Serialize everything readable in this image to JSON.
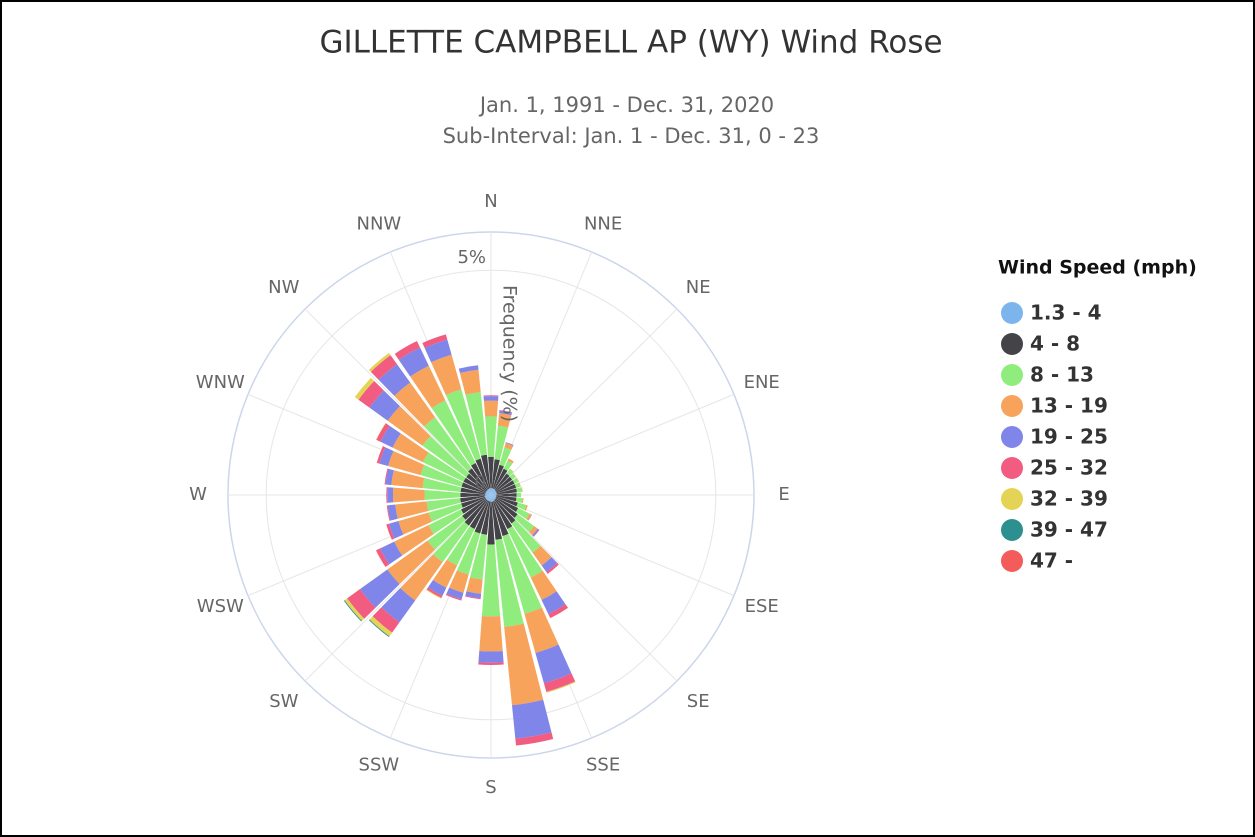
{
  "chart_data": {
    "type": "windrose",
    "title": "GILLETTE CAMPBELL AP (WY) Wind Rose",
    "subtitle": [
      "Jan. 1, 1991 - Dec. 31, 2020",
      "Sub-Interval: Jan. 1 - Dec. 31, 0 - 23"
    ],
    "y_axis_title": "Frequency (%)",
    "legend_title": "Wind Speed (mph)",
    "x": [
      0,
      10,
      20,
      30,
      40,
      50,
      60,
      70,
      80,
      90,
      100,
      110,
      120,
      130,
      140,
      150,
      160,
      170,
      180,
      190,
      200,
      210,
      220,
      230,
      240,
      250,
      260,
      270,
      280,
      290,
      300,
      310,
      320,
      330,
      340,
      350
    ],
    "xlim": [
      0,
      360
    ],
    "xticks": [
      {
        "value": 0,
        "label": "N"
      },
      {
        "value": 22.5,
        "label": "NNE"
      },
      {
        "value": 45,
        "label": "NE"
      },
      {
        "value": 67.5,
        "label": "ENE"
      },
      {
        "value": 90,
        "label": "E"
      },
      {
        "value": 112.5,
        "label": "ESE"
      },
      {
        "value": 135,
        "label": "SE"
      },
      {
        "value": 157.5,
        "label": "SSE"
      },
      {
        "value": 180,
        "label": "S"
      },
      {
        "value": 202.5,
        "label": "SSW"
      },
      {
        "value": 225,
        "label": "SW"
      },
      {
        "value": 247.5,
        "label": "WSW"
      },
      {
        "value": 270,
        "label": "W"
      },
      {
        "value": 292.5,
        "label": "WNW"
      },
      {
        "value": 315,
        "label": "NW"
      },
      {
        "value": 337.5,
        "label": "NNW"
      }
    ],
    "ylim": [
      0,
      5.85
    ],
    "yticks": [
      0,
      {
        "value": 5,
        "label": "5%"
      }
    ],
    "series": [
      {
        "name": "1.3 - 4",
        "color": "#7cb5ec",
        "values": [
          0.15,
          0.15,
          0.15,
          0.15,
          0.14,
          0.13,
          0.13,
          0.13,
          0.13,
          0.12,
          0.12,
          0.12,
          0.12,
          0.13,
          0.13,
          0.14,
          0.15,
          0.15,
          0.15,
          0.14,
          0.14,
          0.14,
          0.14,
          0.14,
          0.14,
          0.14,
          0.14,
          0.13,
          0.13,
          0.13,
          0.13,
          0.13,
          0.13,
          0.14,
          0.14,
          0.15
        ]
      },
      {
        "name": "4 - 8",
        "color": "#434348",
        "values": [
          0.7,
          0.65,
          0.55,
          0.5,
          0.45,
          0.45,
          0.45,
          0.45,
          0.45,
          0.45,
          0.45,
          0.5,
          0.55,
          0.6,
          0.65,
          0.7,
          0.8,
          0.85,
          0.95,
          0.75,
          0.75,
          0.7,
          0.7,
          0.65,
          0.6,
          0.55,
          0.55,
          0.55,
          0.55,
          0.55,
          0.55,
          0.55,
          0.6,
          0.65,
          0.7,
          0.75
        ]
      },
      {
        "name": "8 - 13",
        "color": "#90ed7d",
        "values": [
          0.9,
          0.75,
          0.4,
          0.2,
          0.12,
          0.1,
          0.1,
          0.1,
          0.12,
          0.1,
          0.14,
          0.2,
          0.28,
          0.45,
          0.8,
          1.2,
          1.8,
          1.95,
          1.6,
          1.0,
          0.95,
          0.9,
          1.0,
          0.95,
          0.8,
          0.75,
          0.75,
          0.8,
          0.85,
          0.95,
          1.0,
          1.2,
          1.4,
          1.55,
          1.6,
          1.4
        ]
      },
      {
        "name": "13 - 19",
        "color": "#f7a35c",
        "values": [
          0.35,
          0.28,
          0.1,
          0.05,
          0.01,
          0.01,
          0.01,
          0.01,
          0.01,
          0,
          0.02,
          0.03,
          0.05,
          0.1,
          0.35,
          0.55,
          0.9,
          1.75,
          0.78,
          0.32,
          0.42,
          0.55,
          1.05,
          1.1,
          0.85,
          0.7,
          0.7,
          0.7,
          0.7,
          0.75,
          0.75,
          0.95,
          0.95,
          0.85,
          0.8,
          0.5
        ]
      },
      {
        "name": "19 - 25",
        "color": "#8085e9",
        "values": [
          0.1,
          0.06,
          0.02,
          0,
          0,
          0,
          0,
          0,
          0,
          0,
          0,
          0,
          0.01,
          0.04,
          0.18,
          0.35,
          0.7,
          0.75,
          0.25,
          0.1,
          0.15,
          0.2,
          0.6,
          0.75,
          0.35,
          0.22,
          0.17,
          0.13,
          0.13,
          0.2,
          0.3,
          0.5,
          0.5,
          0.45,
          0.35,
          0.1
        ]
      },
      {
        "name": "25 - 32",
        "color": "#f15c80",
        "values": [
          0.02,
          0.01,
          0,
          0,
          0,
          0,
          0,
          0,
          0,
          0,
          0,
          0,
          0,
          0.01,
          0.05,
          0.1,
          0.2,
          0.15,
          0.05,
          0.02,
          0.03,
          0.05,
          0.28,
          0.35,
          0.1,
          0.06,
          0.02,
          0.02,
          0.02,
          0.06,
          0.1,
          0.3,
          0.25,
          0.16,
          0.12,
          0
        ]
      },
      {
        "name": "32 - 39",
        "color": "#e4d354",
        "values": [
          0,
          0,
          0,
          0,
          0,
          0,
          0,
          0,
          0,
          0,
          0,
          0,
          0,
          0,
          0,
          0,
          0.02,
          0,
          0,
          0,
          0,
          0.02,
          0.1,
          0.07,
          0,
          0,
          0,
          0,
          0,
          0,
          0.01,
          0.1,
          0.06,
          0,
          0,
          0
        ]
      },
      {
        "name": "39 - 47",
        "color": "#2b908f",
        "values": [
          0,
          0,
          0,
          0,
          0,
          0,
          0,
          0,
          0,
          0,
          0,
          0,
          0,
          0,
          0,
          0,
          0,
          0,
          0,
          0,
          0,
          0,
          0.02,
          0.02,
          0,
          0,
          0,
          0,
          0,
          0,
          0,
          0,
          0,
          0,
          0,
          0
        ]
      },
      {
        "name": "47 -",
        "color": "#f45b5b",
        "values": [
          0,
          0,
          0,
          0,
          0,
          0,
          0,
          0,
          0,
          0,
          0,
          0,
          0,
          0,
          0,
          0,
          0,
          0,
          0,
          0,
          0,
          0,
          0,
          0,
          0,
          0,
          0,
          0,
          0,
          0,
          0,
          0,
          0,
          0,
          0,
          0
        ]
      }
    ],
    "grid": true
  }
}
